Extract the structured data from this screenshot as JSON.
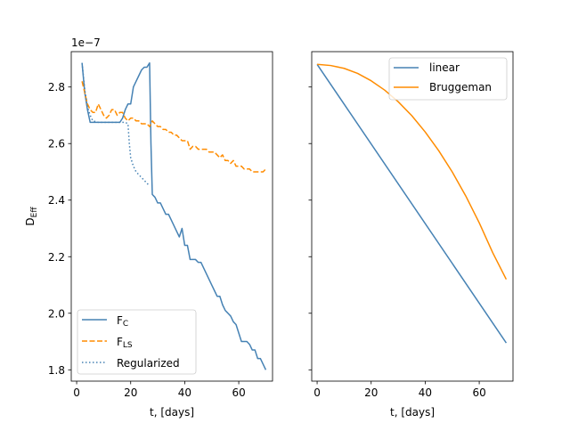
{
  "chart_data": [
    {
      "type": "line",
      "panel": "left",
      "xlabel": "t, [days]",
      "ylabel": "D",
      "ylabel_sub": "Eff",
      "offset_text": "1e−7",
      "xlim": [
        -2,
        72.5
      ],
      "ylim": [
        1.76,
        2.925
      ],
      "xticks": [
        0,
        20,
        40,
        60
      ],
      "xtick_labels": [
        "0",
        "20",
        "40",
        "60"
      ],
      "yticks": [
        1.8,
        2.0,
        2.2,
        2.4,
        2.6,
        2.8
      ],
      "ytick_labels": [
        "1.8",
        "2.0",
        "2.2",
        "2.4",
        "2.6",
        "2.8"
      ],
      "legend_position": "lower-left",
      "series": [
        {
          "name": "F",
          "sub": "C",
          "color": "#4682b4",
          "dash": "solid",
          "x": [
            2,
            3,
            4,
            5,
            6,
            8,
            10,
            12,
            14,
            16,
            17,
            18,
            19,
            20,
            21,
            22,
            23,
            24,
            25,
            26,
            27,
            27.5,
            28,
            29,
            30,
            31,
            32,
            33,
            34,
            35,
            36,
            37,
            38,
            39,
            40,
            41,
            42,
            43,
            44,
            45,
            46,
            47,
            48,
            49,
            50,
            51,
            52,
            53,
            54,
            55,
            56,
            57,
            58,
            59,
            60,
            61,
            62,
            63,
            64,
            65,
            66,
            67,
            68,
            69,
            70
          ],
          "values": [
            2.885,
            2.78,
            2.72,
            2.675,
            2.675,
            2.675,
            2.675,
            2.675,
            2.675,
            2.675,
            2.69,
            2.72,
            2.74,
            2.74,
            2.8,
            2.82,
            2.84,
            2.86,
            2.87,
            2.87,
            2.885,
            2.6,
            2.42,
            2.41,
            2.39,
            2.39,
            2.37,
            2.35,
            2.35,
            2.33,
            2.31,
            2.29,
            2.27,
            2.3,
            2.24,
            2.24,
            2.19,
            2.19,
            2.19,
            2.18,
            2.18,
            2.16,
            2.14,
            2.12,
            2.1,
            2.08,
            2.06,
            2.06,
            2.03,
            2.01,
            2.0,
            1.99,
            1.97,
            1.96,
            1.93,
            1.9,
            1.9,
            1.9,
            1.89,
            1.87,
            1.87,
            1.84,
            1.84,
            1.82,
            1.8
          ]
        },
        {
          "name": "F",
          "sub": "LS",
          "color": "#ff8c00",
          "dash": "dashed",
          "x": [
            2,
            3,
            4,
            5,
            6,
            7,
            8,
            9,
            10,
            11,
            12,
            13,
            14,
            15,
            16,
            17,
            18,
            19,
            20,
            21,
            22,
            23,
            24,
            25,
            26,
            27,
            28,
            29,
            30,
            31,
            32,
            33,
            34,
            35,
            36,
            37,
            38,
            39,
            40,
            41,
            42,
            43,
            44,
            45,
            46,
            47,
            48,
            49,
            50,
            51,
            52,
            53,
            54,
            55,
            56,
            57,
            58,
            59,
            60,
            61,
            62,
            63,
            64,
            65,
            66,
            67,
            68,
            69,
            70
          ],
          "values": [
            2.82,
            2.78,
            2.74,
            2.72,
            2.71,
            2.71,
            2.74,
            2.72,
            2.7,
            2.69,
            2.7,
            2.72,
            2.72,
            2.7,
            2.71,
            2.71,
            2.69,
            2.68,
            2.69,
            2.69,
            2.68,
            2.68,
            2.67,
            2.67,
            2.67,
            2.66,
            2.68,
            2.67,
            2.66,
            2.66,
            2.65,
            2.65,
            2.64,
            2.64,
            2.63,
            2.63,
            2.62,
            2.61,
            2.61,
            2.61,
            2.58,
            2.59,
            2.59,
            2.58,
            2.58,
            2.58,
            2.58,
            2.57,
            2.57,
            2.57,
            2.56,
            2.55,
            2.56,
            2.54,
            2.54,
            2.53,
            2.54,
            2.52,
            2.52,
            2.52,
            2.51,
            2.51,
            2.51,
            2.5,
            2.5,
            2.5,
            2.5,
            2.5,
            2.51
          ]
        },
        {
          "name": "Regularized",
          "sub": "",
          "color": "#4682b4",
          "dash": "dotted",
          "x": [
            2,
            3,
            4,
            5,
            6,
            8,
            10,
            12,
            14,
            16,
            18,
            19,
            19.5,
            20,
            21,
            22,
            23,
            24,
            25,
            26,
            27
          ],
          "values": [
            2.885,
            2.79,
            2.73,
            2.7,
            2.68,
            2.675,
            2.675,
            2.675,
            2.675,
            2.675,
            2.675,
            2.67,
            2.6,
            2.55,
            2.52,
            2.5,
            2.49,
            2.48,
            2.47,
            2.46,
            2.45
          ]
        }
      ]
    },
    {
      "type": "line",
      "panel": "right",
      "xlabel": "t, [days]",
      "xlim": [
        -2,
        72.5
      ],
      "ylim": [
        1.76,
        2.925
      ],
      "xticks": [
        0,
        20,
        40,
        60
      ],
      "xtick_labels": [
        "0",
        "20",
        "40",
        "60"
      ],
      "yticks": [
        1.8,
        2.0,
        2.2,
        2.4,
        2.6,
        2.8
      ],
      "legend_position": "top-right",
      "series": [
        {
          "name": "linear",
          "color": "#4682b4",
          "dash": "solid",
          "x": [
            0,
            70
          ],
          "values": [
            2.88,
            1.895
          ]
        },
        {
          "name": "Bruggeman",
          "color": "#ff8c00",
          "dash": "solid",
          "x": [
            0,
            5,
            10,
            15,
            20,
            25,
            30,
            35,
            40,
            45,
            50,
            55,
            60,
            65,
            70
          ],
          "values": [
            2.88,
            2.876,
            2.866,
            2.848,
            2.822,
            2.789,
            2.748,
            2.699,
            2.641,
            2.575,
            2.5,
            2.415,
            2.32,
            2.214,
            2.12
          ]
        }
      ]
    }
  ]
}
